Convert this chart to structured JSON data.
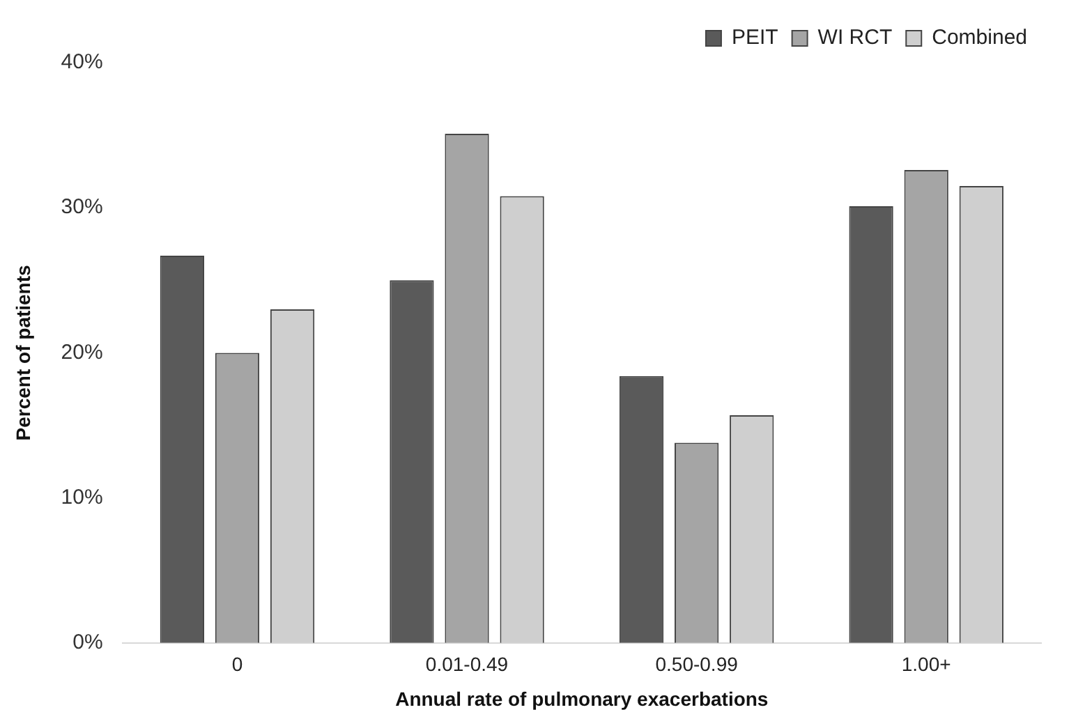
{
  "chart_data": {
    "type": "bar",
    "xlabel": "Annual rate of pulmonary exacerbations",
    "ylabel": "Percent of patients",
    "categories": [
      "0",
      "0.01-0.49",
      "0.50-0.99",
      "1.00+"
    ],
    "series": [
      {
        "name": "PEIT",
        "color": "#5a5a5a",
        "values": [
          26.7,
          25.0,
          18.4,
          30.1
        ]
      },
      {
        "name": "WI RCT",
        "color": "#a5a5a5",
        "values": [
          20.0,
          35.1,
          13.8,
          32.6
        ]
      },
      {
        "name": "Combined",
        "color": "#cfcfcf",
        "values": [
          23.0,
          30.8,
          15.7,
          31.5
        ]
      }
    ],
    "ylim": [
      0,
      40
    ],
    "yticks": [
      {
        "value": 0,
        "label": "0%"
      },
      {
        "value": 10,
        "label": "10%"
      },
      {
        "value": 20,
        "label": "20%"
      },
      {
        "value": 30,
        "label": "30%"
      },
      {
        "value": 40,
        "label": "40%"
      }
    ],
    "grid": false,
    "legend": "top right"
  }
}
